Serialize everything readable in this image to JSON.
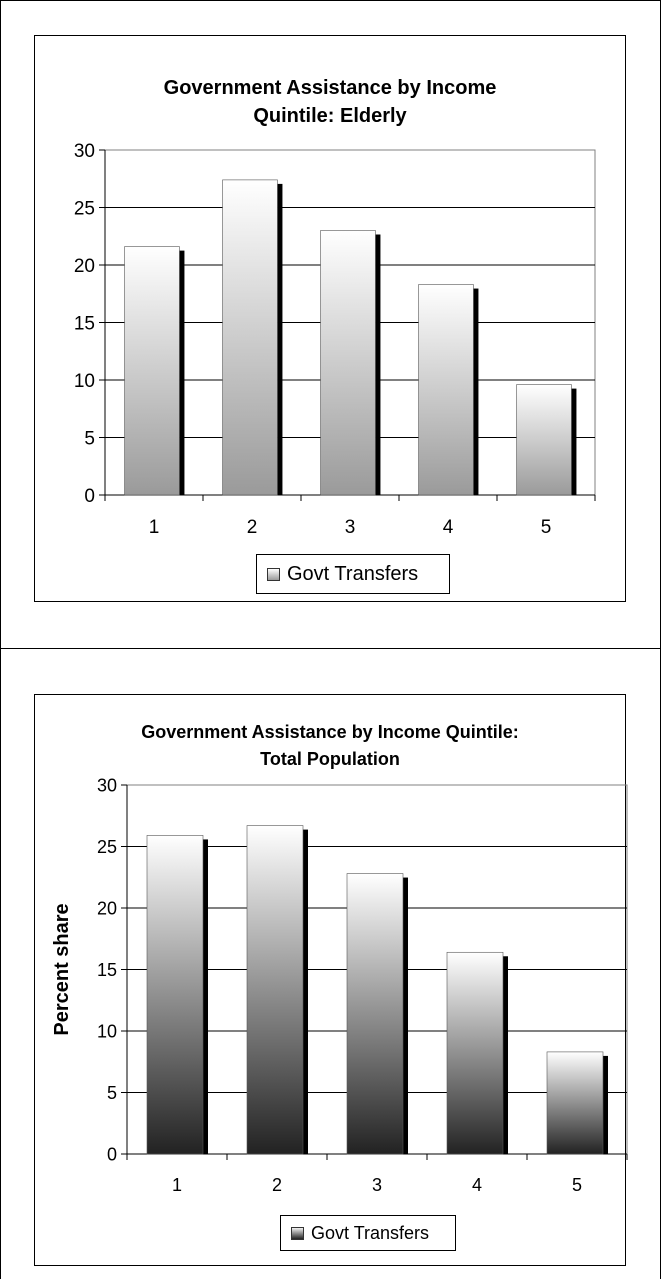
{
  "chart_data": [
    {
      "type": "bar",
      "title_lines": [
        "Government Assistance by Income",
        "Quintile: Elderly"
      ],
      "xlabel": "",
      "ylabel": "",
      "categories": [
        "1",
        "2",
        "3",
        "4",
        "5"
      ],
      "series": [
        {
          "name": "Govt Transfers",
          "values": [
            21.6,
            27.4,
            23.0,
            18.3,
            9.6
          ]
        }
      ],
      "yticks": [
        "0",
        "5",
        "10",
        "15",
        "20",
        "25",
        "30"
      ],
      "ylim": [
        0,
        30
      ],
      "grid": true,
      "legend_placement": "bottom",
      "colors": {
        "bar_top": "#ffffff",
        "bar_bottom": "#9a9a9a",
        "shadow": "#000000"
      }
    },
    {
      "type": "bar",
      "title_lines": [
        "Government Assistance by Income Quintile:",
        "Total Population"
      ],
      "xlabel": "",
      "ylabel": "Percent share",
      "categories": [
        "1",
        "2",
        "3",
        "4",
        "5"
      ],
      "series": [
        {
          "name": "Govt Transfers",
          "values": [
            25.9,
            26.7,
            22.8,
            16.4,
            8.3
          ]
        }
      ],
      "yticks": [
        "0",
        "5",
        "10",
        "15",
        "20",
        "25",
        "30"
      ],
      "ylim": [
        0,
        30
      ],
      "grid": true,
      "legend_placement": "bottom",
      "colors": {
        "bar_top": "#ffffff",
        "bar_bottom": "#222222",
        "shadow": "#000000"
      }
    }
  ]
}
